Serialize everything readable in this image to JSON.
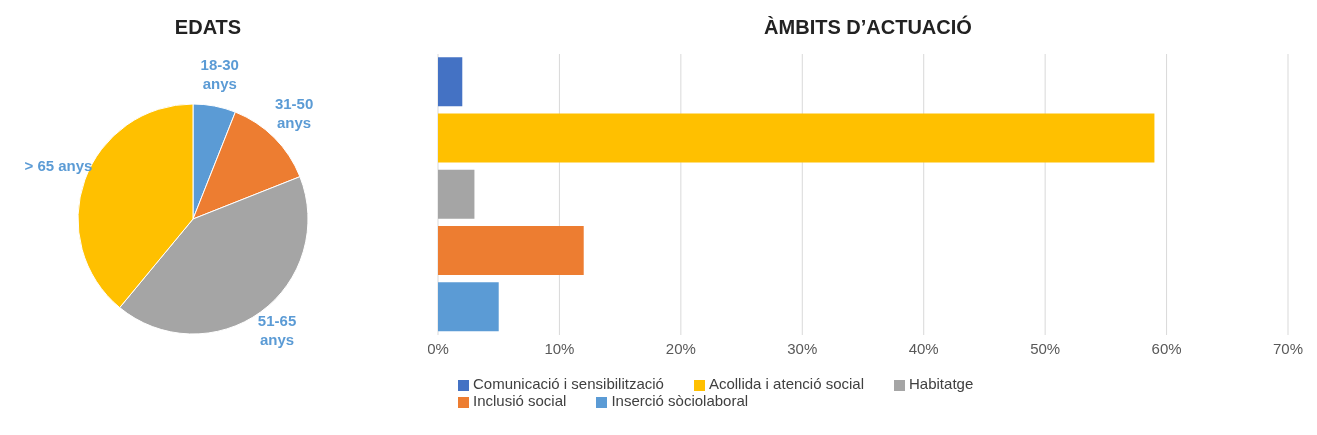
{
  "chart_data": [
    {
      "type": "pie",
      "title": "EDATS",
      "categories": [
        "18-30 anys",
        "31-50 anys",
        "51-65 anys",
        "> 65 anys"
      ],
      "values": [
        6,
        13,
        42,
        39
      ],
      "colors": [
        "#5b9bd5",
        "#ed7d31",
        "#a5a5a5",
        "#ffc000"
      ],
      "legend": false
    },
    {
      "type": "bar",
      "title": "ÀMBITS D’ACTUACIÓ",
      "orientation": "horizontal",
      "categories": [
        null,
        null,
        null,
        null,
        null
      ],
      "series": [
        {
          "name": "Comunicació i sensibilització",
          "color": "#4472c4",
          "values": [
            2,
            null,
            null,
            null,
            null
          ]
        },
        {
          "name": "Acollida i atenció social",
          "color": "#ffc000",
          "values": [
            null,
            59,
            null,
            null,
            null
          ]
        },
        {
          "name": "Habitatge",
          "color": "#a5a5a5",
          "values": [
            null,
            null,
            3,
            null,
            null
          ]
        },
        {
          "name": "Inclusió social",
          "color": "#ed7d31",
          "values": [
            null,
            null,
            null,
            12,
            null
          ]
        },
        {
          "name": "Inserció sòciolaboral",
          "color": "#5b9bd5",
          "values": [
            null,
            null,
            null,
            null,
            5
          ]
        }
      ],
      "xlim": [
        0,
        70
      ],
      "xticks": [
        {
          "value": 0,
          "label": "0%"
        },
        {
          "value": 10,
          "label": "10%"
        },
        {
          "value": 20,
          "label": "20%"
        },
        {
          "value": 30,
          "label": "30%"
        },
        {
          "value": 40,
          "label": "40%"
        },
        {
          "value": 50,
          "label": "50%"
        },
        {
          "value": 60,
          "label": "60%"
        },
        {
          "value": 70,
          "label": "70%"
        }
      ],
      "grid": "x",
      "legend": "bottom",
      "tick_labels": "x"
    }
  ]
}
